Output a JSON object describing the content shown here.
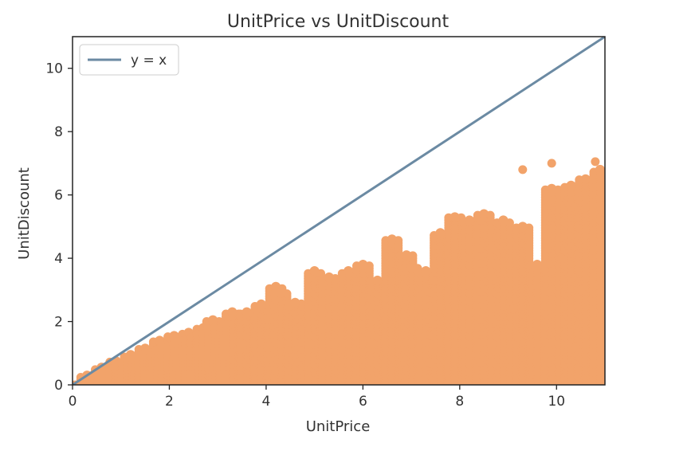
{
  "chart_data": {
    "type": "scatter",
    "title": "UnitPrice vs UnitDiscount",
    "xlabel": "UnitPrice",
    "ylabel": "UnitDiscount",
    "xlim": [
      0,
      11
    ],
    "ylim": [
      0,
      11
    ],
    "xticks": [
      0,
      2,
      4,
      6,
      8,
      10
    ],
    "yticks": [
      0,
      2,
      4,
      6,
      8,
      10
    ],
    "grid": false,
    "legend_position": "top-left",
    "series": [
      {
        "name": "y = x",
        "kind": "line",
        "color": "#6b8aa3",
        "x": [
          0,
          11
        ],
        "y": [
          0,
          11
        ]
      },
      {
        "kind": "scatter",
        "color": "#f2a36a",
        "clusters": [
          {
            "x": 0.3,
            "ymax": 0.3
          },
          {
            "x": 0.6,
            "ymax": 0.55
          },
          {
            "x": 0.9,
            "ymax": 0.75
          },
          {
            "x": 1.2,
            "ymax": 0.95
          },
          {
            "x": 1.5,
            "ymax": 1.15
          },
          {
            "x": 1.8,
            "ymax": 1.4
          },
          {
            "x": 2.1,
            "ymax": 1.55
          },
          {
            "x": 2.4,
            "ymax": 1.65
          },
          {
            "x": 2.7,
            "ymax": 1.8
          },
          {
            "x": 2.9,
            "ymax": 2.05
          },
          {
            "x": 3.3,
            "ymax": 2.3
          },
          {
            "x": 3.6,
            "ymax": 2.3
          },
          {
            "x": 3.9,
            "ymax": 2.55
          },
          {
            "x": 4.2,
            "ymax": 3.1
          },
          {
            "x": 4.3,
            "ymax": 2.9
          },
          {
            "x": 4.6,
            "ymax": 2.6
          },
          {
            "x": 5.0,
            "ymax": 3.6
          },
          {
            "x": 5.3,
            "ymax": 3.4
          },
          {
            "x": 5.7,
            "ymax": 3.6
          },
          {
            "x": 6.0,
            "ymax": 3.8
          },
          {
            "x": 6.3,
            "ymax": 3.3
          },
          {
            "x": 6.6,
            "ymax": 4.6
          },
          {
            "x": 6.9,
            "ymax": 4.1
          },
          {
            "x": 7.0,
            "ymax": 3.7
          },
          {
            "x": 7.3,
            "ymax": 3.6
          },
          {
            "x": 7.6,
            "ymax": 4.8
          },
          {
            "x": 7.9,
            "ymax": 5.3
          },
          {
            "x": 8.2,
            "ymax": 5.2
          },
          {
            "x": 8.5,
            "ymax": 5.4
          },
          {
            "x": 8.9,
            "ymax": 5.2
          },
          {
            "x": 9.3,
            "ymax": 5.0
          },
          {
            "x": 9.6,
            "ymax": 3.8
          },
          {
            "x": 9.9,
            "ymax": 6.2
          },
          {
            "x": 10.3,
            "ymax": 6.3
          },
          {
            "x": 10.6,
            "ymax": 6.5
          },
          {
            "x": 10.9,
            "ymax": 6.8
          }
        ],
        "outliers": [
          [
            9.3,
            6.8
          ],
          [
            9.9,
            7.0
          ],
          [
            10.8,
            7.05
          ],
          [
            10.3,
            6.3
          ],
          [
            10.5,
            3.0
          ],
          [
            9.55,
            3.75
          ],
          [
            10.1,
            4.0
          ],
          [
            10.9,
            5.2
          ],
          [
            10.4,
            1.2
          ],
          [
            9.9,
            0.15
          ],
          [
            10.7,
            0.05
          ],
          [
            9.1,
            2.4
          ],
          [
            9.2,
            1.5
          ],
          [
            7.45,
            3.3
          ]
        ]
      }
    ]
  }
}
